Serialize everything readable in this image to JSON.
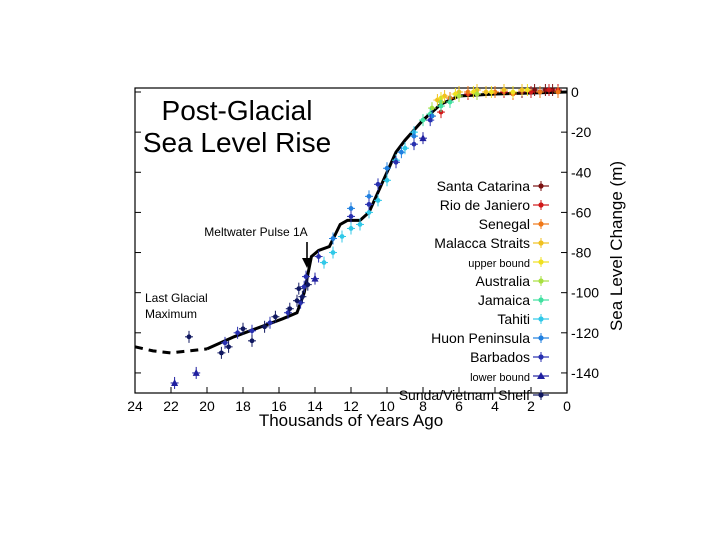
{
  "chart_data": {
    "type": "scatter",
    "title": "Post-Glacial",
    "subtitle": "Sea Level Rise",
    "xlabel": "Thousands of Years Ago",
    "ylabel": "Sea Level Change (m)",
    "xlim": [
      24,
      0
    ],
    "ylim": [
      -150,
      2
    ],
    "x_ticks": [
      24,
      22,
      20,
      18,
      16,
      14,
      12,
      10,
      8,
      6,
      4,
      2,
      0
    ],
    "y_ticks": [
      0,
      -20,
      -40,
      -60,
      -80,
      -100,
      -120,
      -140
    ],
    "grid": false,
    "legend_position": "right",
    "annotations": [
      {
        "text": "Meltwater Pulse 1A",
        "x": 14.6,
        "y": -84
      },
      {
        "text_lines": [
          "Last Glacial",
          "Maximum"
        ],
        "x": 22.5,
        "y": -108
      }
    ],
    "fit_curve": {
      "name": "",
      "solid": [
        [
          20.0,
          -128
        ],
        [
          18.5,
          -122
        ],
        [
          17,
          -117
        ],
        [
          15.8,
          -113
        ],
        [
          15.0,
          -110
        ],
        [
          14.6,
          -100
        ],
        [
          14.2,
          -82
        ],
        [
          13.8,
          -79
        ],
        [
          13.2,
          -77
        ],
        [
          12.6,
          -66
        ],
        [
          12.2,
          -64
        ],
        [
          11.5,
          -64
        ],
        [
          11.0,
          -60
        ],
        [
          10.5,
          -50
        ],
        [
          10.0,
          -40
        ],
        [
          9.5,
          -30
        ],
        [
          9.0,
          -24
        ],
        [
          8.5,
          -19
        ],
        [
          8.0,
          -14
        ],
        [
          7.5,
          -10
        ],
        [
          7.0,
          -6
        ],
        [
          6.5,
          -4
        ],
        [
          6.0,
          -2
        ],
        [
          4.0,
          -1
        ],
        [
          0.0,
          0
        ]
      ],
      "dashed": [
        [
          24.0,
          -127
        ],
        [
          23.0,
          -129
        ],
        [
          22.0,
          -130
        ],
        [
          21.0,
          -129
        ],
        [
          20.0,
          -128
        ]
      ]
    },
    "series": [
      {
        "name": "Santa Catarina",
        "color": "#7a1010",
        "marker": "dot",
        "points": [
          [
            2.5,
            0
          ],
          [
            1.8,
            1
          ],
          [
            1.2,
            1
          ],
          [
            0.8,
            1
          ]
        ]
      },
      {
        "name": "Rio de Janiero",
        "color": "#d01818",
        "marker": "dot",
        "points": [
          [
            7.5,
            -12
          ],
          [
            7.0,
            -10
          ],
          [
            5.5,
            -1
          ],
          [
            3.5,
            0
          ],
          [
            2.0,
            0
          ],
          [
            1.0,
            1
          ],
          [
            0.5,
            1
          ]
        ]
      },
      {
        "name": "Senegal",
        "color": "#f07818",
        "marker": "dot",
        "points": [
          [
            7.0,
            -5
          ],
          [
            6.5,
            -3
          ],
          [
            5.5,
            0
          ],
          [
            5.0,
            -1
          ],
          [
            4.0,
            0
          ],
          [
            3.0,
            -1
          ],
          [
            1.5,
            0
          ],
          [
            0.5,
            0
          ]
        ]
      },
      {
        "name": "Malacca Straits",
        "color": "#f0c020",
        "marker": "dot",
        "points": [
          [
            7.2,
            -4
          ],
          [
            6.8,
            -2
          ],
          [
            6.0,
            0
          ],
          [
            5.0,
            1
          ],
          [
            4.5,
            0
          ],
          [
            3.5,
            1
          ],
          [
            2.5,
            1
          ]
        ]
      },
      {
        "name": "upper bound",
        "color": "#f0e020",
        "marker": "dot",
        "points": [
          [
            7.0,
            -3
          ],
          [
            6.2,
            -1
          ],
          [
            5.2,
            0
          ],
          [
            4.2,
            0
          ],
          [
            3.0,
            0
          ],
          [
            2.2,
            1
          ]
        ]
      },
      {
        "name": "Australia",
        "color": "#a8e040",
        "marker": "dot",
        "points": [
          [
            7.5,
            -8
          ],
          [
            7.0,
            -5
          ],
          [
            6.0,
            -2
          ],
          [
            5.0,
            -1
          ]
        ]
      },
      {
        "name": "Jamaica",
        "color": "#40e0a0",
        "marker": "dot",
        "points": [
          [
            8.0,
            -14
          ],
          [
            7.6,
            -11
          ],
          [
            7.0,
            -7
          ],
          [
            6.5,
            -5
          ]
        ]
      },
      {
        "name": "Tahiti",
        "color": "#30c8e8",
        "marker": "dot",
        "points": [
          [
            13.5,
            -85
          ],
          [
            13.0,
            -80
          ],
          [
            12.5,
            -72
          ],
          [
            12.0,
            -68
          ],
          [
            11.5,
            -66
          ],
          [
            11.0,
            -60
          ],
          [
            10.5,
            -54
          ],
          [
            10.0,
            -44
          ],
          [
            9.5,
            -34
          ],
          [
            9.0,
            -28
          ],
          [
            8.5,
            -20
          ]
        ]
      },
      {
        "name": "Huon Peninsula",
        "color": "#2080e0",
        "marker": "dot",
        "points": [
          [
            13.0,
            -73
          ],
          [
            12.0,
            -58
          ],
          [
            11.0,
            -52
          ],
          [
            10.0,
            -38
          ],
          [
            9.2,
            -30
          ],
          [
            8.5,
            -22
          ],
          [
            7.5,
            -12
          ]
        ]
      },
      {
        "name": "Barbados",
        "color": "#2830b0",
        "marker": "dot",
        "points": [
          [
            19.0,
            -125
          ],
          [
            18.3,
            -120
          ],
          [
            17.5,
            -119
          ],
          [
            16.5,
            -115
          ],
          [
            15.5,
            -110
          ],
          [
            14.8,
            -105
          ],
          [
            14.6,
            -97
          ],
          [
            14.5,
            -92
          ],
          [
            13.8,
            -82
          ],
          [
            12.0,
            -62
          ],
          [
            11.0,
            -56
          ],
          [
            10.5,
            -46
          ],
          [
            9.5,
            -35
          ],
          [
            8.5,
            -26
          ],
          [
            7.6,
            -14
          ]
        ]
      },
      {
        "name": "lower bound",
        "color": "#2020a0",
        "marker": "triangle",
        "points": [
          [
            21.8,
            -145
          ],
          [
            20.6,
            -140
          ],
          [
            14.0,
            -93
          ],
          [
            8.0,
            -23
          ]
        ]
      },
      {
        "name": "Sunda/Vietnam Shelf",
        "color": "#101860",
        "marker": "dot",
        "points": [
          [
            21.0,
            -122
          ],
          [
            19.2,
            -130
          ],
          [
            18.8,
            -127
          ],
          [
            18.0,
            -118
          ],
          [
            17.5,
            -124
          ],
          [
            16.8,
            -117
          ],
          [
            16.2,
            -112
          ],
          [
            15.4,
            -108
          ],
          [
            15.0,
            -104
          ],
          [
            14.9,
            -98
          ],
          [
            14.7,
            -102
          ],
          [
            14.4,
            -96
          ]
        ]
      }
    ]
  }
}
